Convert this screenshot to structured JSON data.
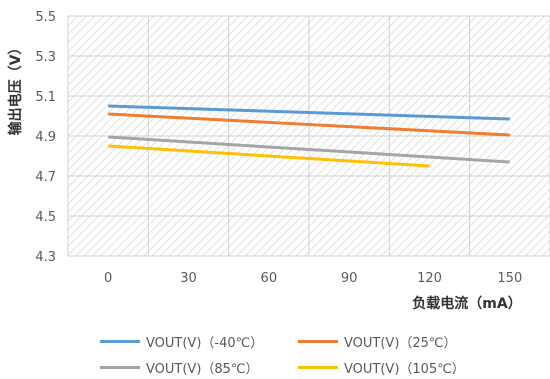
{
  "chart_data": {
    "type": "line",
    "title": "",
    "xlabel": "负载电流（mA）",
    "ylabel": "输出电压（V）",
    "x_ticks": [
      0,
      30,
      60,
      90,
      120,
      150
    ],
    "y_ticks": [
      "4.3",
      "4.5",
      "4.7",
      "4.9",
      "5.1",
      "5.3",
      "5.5"
    ],
    "xlim": [
      -15,
      165
    ],
    "ylim": [
      4.3,
      5.5
    ],
    "grid": true,
    "legend_position": "bottom",
    "series": [
      {
        "name": "VOUT(V)（-40℃）",
        "color": "#5b9bd5",
        "x": [
          0,
          150
        ],
        "y": [
          5.05,
          4.985
        ]
      },
      {
        "name": "VOUT(V)（25℃）",
        "color": "#ed7d31",
        "x": [
          0,
          150
        ],
        "y": [
          5.01,
          4.905
        ]
      },
      {
        "name": "VOUT(V)（85℃）",
        "color": "#a5a5a5",
        "x": [
          0,
          150
        ],
        "y": [
          4.895,
          4.77
        ]
      },
      {
        "name": "VOUT(V)（105℃）",
        "color": "#ffc000",
        "x": [
          0,
          120
        ],
        "y": [
          4.85,
          4.75
        ]
      }
    ]
  }
}
